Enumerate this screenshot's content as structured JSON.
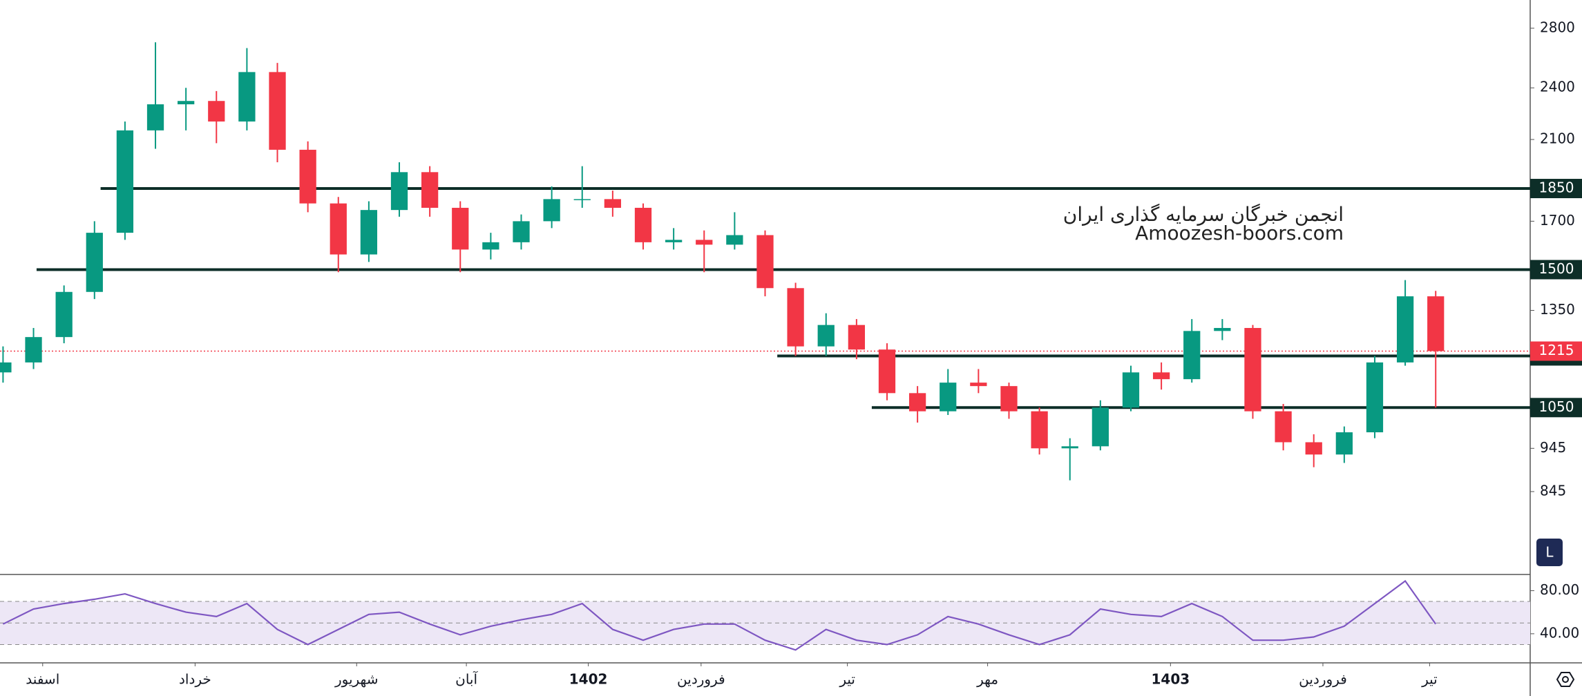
{
  "chart_data": [
    {
      "type": "candlestick",
      "watermark": [
        "انجمن خبرگان سرمایه گذاری ایران",
        "Amoozesh-boors.com"
      ],
      "up_color": "#089981",
      "down_color": "#f23645",
      "open": [
        1150,
        1180,
        1260,
        1416,
        1650,
        2150,
        2300,
        2320,
        2200,
        2500,
        2045,
        1780,
        1560,
        1750,
        1930,
        1760,
        1580,
        1610,
        1700,
        1800,
        1800,
        1760,
        1610,
        1620,
        1600,
        1640,
        1430,
        1230,
        1300,
        1220,
        1090,
        1040,
        1120,
        1110,
        1040,
        945,
        950,
        1050,
        1150,
        1130,
        1280,
        1290,
        1040,
        960,
        930,
        985,
        1180,
        1400
      ],
      "high": [
        1230,
        1290,
        1440,
        1700,
        2200,
        2700,
        2400,
        2380,
        2660,
        2560,
        2090,
        1810,
        1790,
        1980,
        1960,
        1790,
        1650,
        1730,
        1860,
        1960,
        1840,
        1780,
        1670,
        1660,
        1740,
        1660,
        1450,
        1340,
        1320,
        1240,
        1110,
        1160,
        1160,
        1120,
        1050,
        970,
        1070,
        1170,
        1180,
        1320,
        1320,
        1300,
        1060,
        980,
        1000,
        1200,
        1460,
        1420
      ],
      "low": [
        1120,
        1160,
        1240,
        1390,
        1620,
        2050,
        2150,
        2080,
        2150,
        1980,
        1740,
        1490,
        1530,
        1720,
        1720,
        1490,
        1540,
        1580,
        1670,
        1760,
        1720,
        1580,
        1580,
        1490,
        1580,
        1400,
        1200,
        1200,
        1190,
        1070,
        1010,
        1030,
        1090,
        1020,
        930,
        870,
        940,
        1040,
        1100,
        1120,
        1250,
        1020,
        940,
        900,
        910,
        970,
        1170,
        1050
      ],
      "close": [
        1180,
        1260,
        1416,
        1650,
        2150,
        2300,
        2320,
        2200,
        2500,
        2045,
        1780,
        1560,
        1750,
        1930,
        1760,
        1580,
        1610,
        1700,
        1800,
        1800,
        1760,
        1610,
        1620,
        1600,
        1640,
        1430,
        1230,
        1300,
        1220,
        1090,
        1040,
        1120,
        1110,
        1040,
        945,
        950,
        1050,
        1150,
        1130,
        1280,
        1290,
        1040,
        960,
        930,
        985,
        1180,
        1400,
        1215
      ],
      "log_scale": true,
      "ylim": [
        682,
        3012
      ],
      "yticks": [
        2800,
        2400,
        2100,
        1700,
        1350,
        945,
        845
      ],
      "xlim": [
        -0.1,
        50.1
      ],
      "xticks": [
        {
          "value": 1.3,
          "label": "اسفند"
        },
        {
          "value": 6.3,
          "label": "خرداد"
        },
        {
          "value": 11.6,
          "label": "شهریور"
        },
        {
          "value": 15.2,
          "label": "آبان"
        },
        {
          "value": 19.2,
          "label": "1402"
        },
        {
          "value": 22.9,
          "label": "فروردین"
        },
        {
          "value": 27.7,
          "label": "تیر"
        },
        {
          "value": 32.3,
          "label": "مهر"
        },
        {
          "value": 38.3,
          "label": "1403"
        },
        {
          "value": 43.3,
          "label": "فروردین"
        },
        {
          "value": 46.8,
          "label": "تیر"
        }
      ],
      "levels": [
        {
          "value": 1850,
          "x_start": 3.2
        },
        {
          "value": 1500,
          "x_start": 1.1
        },
        {
          "value": 1200,
          "x_start": 25.4
        },
        {
          "value": 1050,
          "x_start": 28.5
        }
      ],
      "level_color": "#0d2e28",
      "last_price": 1215,
      "last_price_color": "#f23645",
      "scale_button": "L"
    },
    {
      "type": "line",
      "name": "RSI",
      "color": "#7e57c2",
      "values": [
        49,
        63,
        68,
        72,
        77,
        68,
        60,
        56,
        68,
        44,
        30,
        44,
        58,
        60,
        49,
        39,
        47,
        53,
        58,
        68,
        44,
        34,
        44,
        49,
        49,
        34,
        25,
        44,
        34,
        30,
        39,
        56,
        49,
        39,
        30,
        39,
        63,
        58,
        56,
        68,
        56,
        34,
        34,
        37,
        47,
        68,
        89,
        49
      ],
      "ylim": [
        13,
        95
      ],
      "yticks": [
        {
          "value": 80,
          "label": "80.00"
        },
        {
          "value": 40,
          "label": "40.00"
        }
      ],
      "band": [
        30,
        70
      ],
      "band_lines": [
        70,
        50,
        30
      ],
      "band_color": "#ede7f6"
    }
  ]
}
